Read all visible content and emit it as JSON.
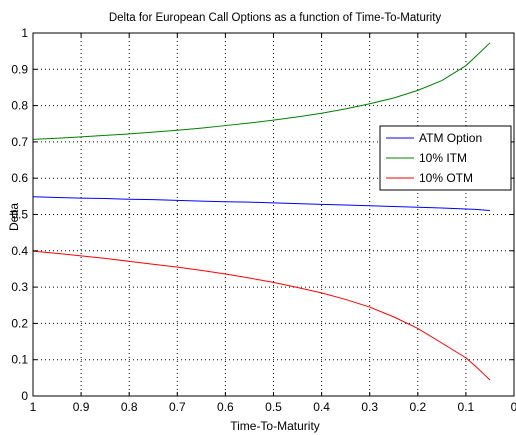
{
  "chart_data": {
    "type": "line",
    "title": "Delta for European Call Options as a function of Time-To-Maturity",
    "xlabel": "Time-To-Maturity",
    "ylabel": "Delta",
    "xlim": [
      1,
      0
    ],
    "ylim": [
      0,
      1
    ],
    "x_reversed": true,
    "grid": true,
    "legend_position": "right",
    "xticks": [
      1,
      0.9,
      0.8,
      0.7,
      0.6,
      0.5,
      0.4,
      0.3,
      0.2,
      0.1,
      0
    ],
    "xtick_labels": [
      "1",
      "0.9",
      "0.8",
      "0.7",
      "0.6",
      "0.5",
      "0.4",
      "0.3",
      "0.2",
      "0.1",
      "0"
    ],
    "yticks": [
      0,
      0.1,
      0.2,
      0.3,
      0.4,
      0.5,
      0.6,
      0.7,
      0.8,
      0.9,
      1
    ],
    "ytick_labels": [
      "0",
      "0.1",
      "0.2",
      "0.3",
      "0.4",
      "0.5",
      "0.6",
      "0.7",
      "0.8",
      "0.9",
      "1"
    ],
    "x": [
      1,
      0.95,
      0.9,
      0.85,
      0.8,
      0.75,
      0.7,
      0.65,
      0.6,
      0.55,
      0.5,
      0.45,
      0.4,
      0.35,
      0.3,
      0.25,
      0.2,
      0.15,
      0.1,
      0.08,
      0.06,
      0.05
    ],
    "series": [
      {
        "name": "ATM Option",
        "color": "#0000ff",
        "values": [
          0.549,
          0.547,
          0.545,
          0.544,
          0.542,
          0.541,
          0.539,
          0.537,
          0.535,
          0.534,
          0.532,
          0.53,
          0.528,
          0.526,
          0.524,
          0.522,
          0.52,
          0.518,
          0.515,
          0.514,
          0.512,
          0.511
        ]
      },
      {
        "name": "10% ITM",
        "color": "#008000",
        "values": [
          0.707,
          0.71,
          0.714,
          0.718,
          0.722,
          0.727,
          0.732,
          0.738,
          0.745,
          0.752,
          0.76,
          0.769,
          0.779,
          0.791,
          0.805,
          0.821,
          0.842,
          0.869,
          0.91,
          0.935,
          0.96,
          0.973
        ]
      },
      {
        "name": "10% OTM",
        "color": "#ff0000",
        "values": [
          0.399,
          0.393,
          0.386,
          0.379,
          0.371,
          0.363,
          0.355,
          0.346,
          0.336,
          0.325,
          0.313,
          0.299,
          0.284,
          0.266,
          0.245,
          0.218,
          0.186,
          0.146,
          0.105,
          0.082,
          0.057,
          0.044
        ]
      }
    ]
  }
}
